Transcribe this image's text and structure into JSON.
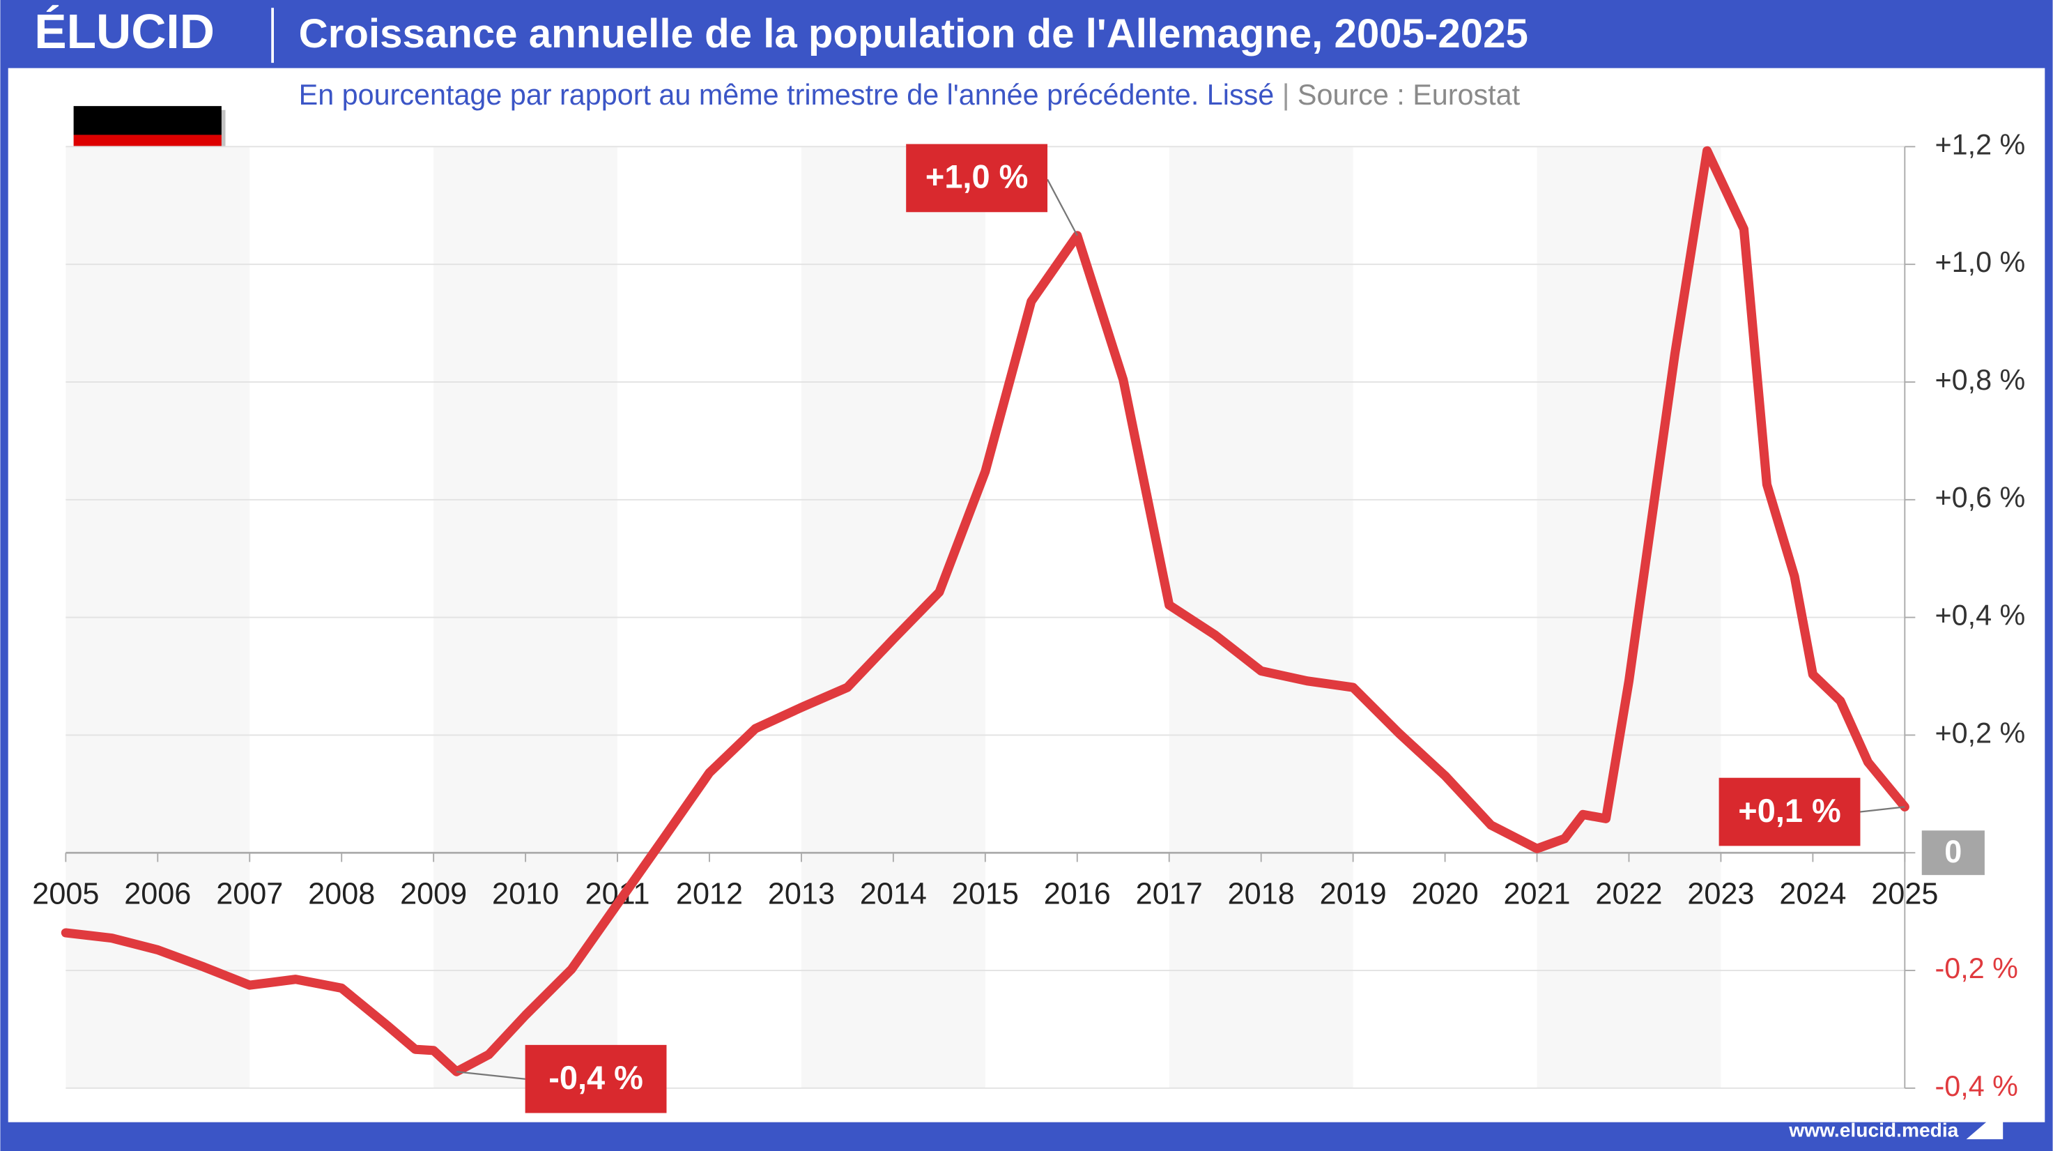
{
  "chart_data": {
    "type": "line",
    "logo": "ÉLUCID",
    "title": "Croissance annuelle de la population de l'Allemagne, 2005-2025",
    "subtitle": "En pourcentage par rapport au même trimestre de l'année précédente. Lissé",
    "source": "Source : Eurostat",
    "footer": "www.elucid.media",
    "color": "#e03a3e",
    "grid": true,
    "x": [
      2005,
      2005.5,
      2006,
      2006.5,
      2007,
      2007.5,
      2008,
      2008.5,
      2008.8,
      2009,
      2009.25,
      2009.6,
      2010,
      2010.5,
      2011,
      2011.5,
      2012,
      2012.5,
      2013,
      2013.5,
      2014,
      2014.5,
      2015,
      2015.5,
      2016,
      2016.5,
      2017,
      2017.5,
      2018,
      2018.5,
      2019,
      2019.5,
      2020,
      2020.5,
      2021,
      2021.3,
      2021.5,
      2021.75,
      2022,
      2022.5,
      2022.85,
      2023.25,
      2023.5,
      2023.8,
      2024,
      2024.3,
      2024.6,
      2025
    ],
    "values": [
      -0.136,
      -0.145,
      -0.165,
      -0.194,
      -0.225,
      -0.215,
      -0.23,
      -0.294,
      -0.334,
      -0.336,
      -0.372,
      -0.343,
      -0.276,
      -0.198,
      -0.087,
      0.024,
      0.136,
      0.211,
      0.247,
      0.281,
      0.363,
      0.443,
      0.648,
      0.937,
      1.049,
      0.804,
      0.421,
      0.37,
      0.309,
      0.292,
      0.281,
      0.203,
      0.131,
      0.047,
      0.007,
      0.024,
      0.065,
      0.058,
      0.292,
      0.848,
      1.193,
      1.06,
      0.626,
      0.47,
      0.303,
      0.258,
      0.154,
      0.078
    ],
    "xlim": [
      2005,
      2025
    ],
    "xticks": [
      2005,
      2006,
      2007,
      2008,
      2009,
      2010,
      2011,
      2012,
      2013,
      2014,
      2015,
      2016,
      2017,
      2018,
      2019,
      2020,
      2021,
      2022,
      2023,
      2024,
      2025
    ],
    "ylim": [
      -0.4,
      1.2
    ],
    "yticks": [
      {
        "value": -0.4,
        "label": "-0,4 %"
      },
      {
        "value": -0.2,
        "label": "-0,2 %"
      },
      {
        "value": 0,
        "label": "0"
      },
      {
        "value": 0.2,
        "label": "+0,2 %"
      },
      {
        "value": 0.4,
        "label": "+0,4 %"
      },
      {
        "value": 0.6,
        "label": "+0,6 %"
      },
      {
        "value": 0.8,
        "label": "+0,8 %"
      },
      {
        "value": 1.0,
        "label": "+1,0 %"
      },
      {
        "value": 1.2,
        "label": "+1,2 %"
      }
    ],
    "annotations": [
      {
        "text": "+1,0 %",
        "x": 2016,
        "value": 1.049
      },
      {
        "text": "-0,4 %",
        "x": 2009.25,
        "value": -0.372
      },
      {
        "text": "+0,1 %",
        "x": 2025,
        "value": 0.078
      }
    ]
  }
}
